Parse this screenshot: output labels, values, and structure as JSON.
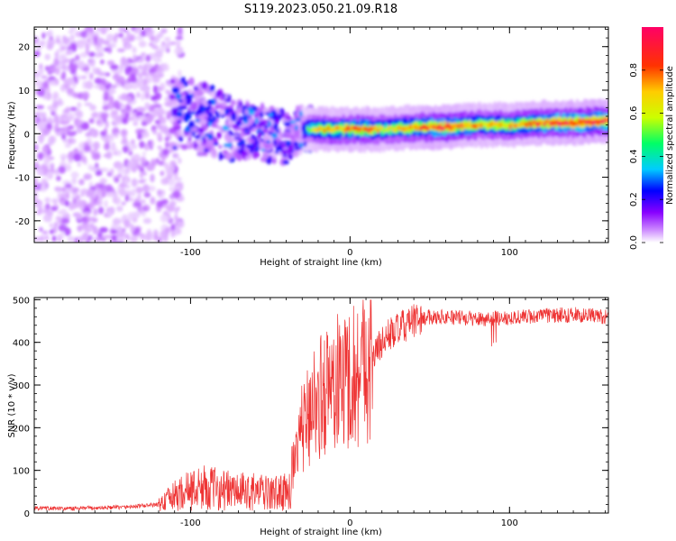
{
  "title": "S119.2023.050.21.09.R18",
  "chart_data": [
    {
      "type": "heatmap",
      "xlabel": "Height of straight line (km)",
      "ylabel": "Frequency (Hz)",
      "xlim": [
        -198,
        162
      ],
      "ylim": [
        -25,
        24.5
      ],
      "x_ticks": [
        -100,
        0,
        100
      ],
      "x_tick_labels": [
        "-100",
        "0",
        "100"
      ],
      "y_ticks": [
        -20,
        -10,
        0,
        10,
        20
      ],
      "y_tick_labels": [
        "-20",
        "-10",
        "0",
        "10",
        "20"
      ],
      "colorbar": {
        "label": "Normalized spectral amplitude",
        "range": [
          0,
          1
        ],
        "ticks": [
          0.0,
          0.2,
          0.4,
          0.6,
          0.8
        ],
        "tick_labels": [
          "0.0",
          "0.2",
          "0.4",
          "0.6",
          "0.8"
        ],
        "colormap": [
          "#ffffff",
          "#cc88ff",
          "#8800ff",
          "#0000ff",
          "#00ccff",
          "#00ff66",
          "#ccff00",
          "#ffcc00",
          "#ff3300",
          "#ff0066"
        ]
      },
      "ridge": {
        "x": [
          -110,
          -100,
          -90,
          -80,
          -70,
          -60,
          -50,
          -40,
          -30,
          -20,
          -10,
          0,
          10,
          20,
          40,
          60,
          80,
          100,
          120,
          140,
          162
        ],
        "center_hz": [
          5,
          4,
          3,
          2,
          1,
          1,
          0,
          -1,
          1,
          1,
          1,
          1,
          1,
          1,
          1.5,
          1.5,
          2,
          2,
          2.5,
          2.5,
          3
        ],
        "peak_amplitude": [
          0.3,
          0.4,
          0.45,
          0.4,
          0.4,
          0.4,
          0.4,
          0.4,
          0.5,
          0.8,
          0.8,
          0.85,
          0.9,
          0.7,
          0.85,
          0.95,
          0.8,
          0.8,
          0.9,
          0.95,
          0.95
        ]
      },
      "noise_region": {
        "x_from": -198,
        "x_to": -110,
        "amplitude": 0.15
      }
    },
    {
      "type": "line",
      "xlabel": "Height of straight line (km)",
      "ylabel": "SNR (10 * v/v)",
      "xlim": [
        -198,
        162
      ],
      "ylim": [
        0,
        505
      ],
      "x_ticks": [
        -100,
        0,
        100
      ],
      "x_tick_labels": [
        "-100",
        "0",
        "100"
      ],
      "y_ticks": [
        0,
        100,
        200,
        300,
        400,
        500
      ],
      "y_tick_labels": [
        "0",
        "100",
        "200",
        "300",
        "400",
        "500"
      ],
      "color": "#ee3333",
      "series": [
        {
          "x": [
            -198,
            -180,
            -160,
            -140,
            -120,
            -110,
            -100,
            -90,
            -80,
            -70,
            -60,
            -50,
            -40,
            -35,
            -30,
            -25,
            -20,
            -15,
            -10,
            -5,
            0,
            5,
            10,
            15,
            20,
            25,
            30,
            40,
            50,
            60,
            80,
            100,
            120,
            140,
            162
          ],
          "values": [
            12,
            10,
            12,
            14,
            20,
            40,
            55,
            60,
            55,
            50,
            50,
            45,
            50,
            100,
            200,
            240,
            270,
            290,
            300,
            310,
            320,
            330,
            360,
            370,
            400,
            420,
            430,
            450,
            460,
            460,
            455,
            458,
            462,
            465,
            460
          ]
        }
      ]
    }
  ]
}
